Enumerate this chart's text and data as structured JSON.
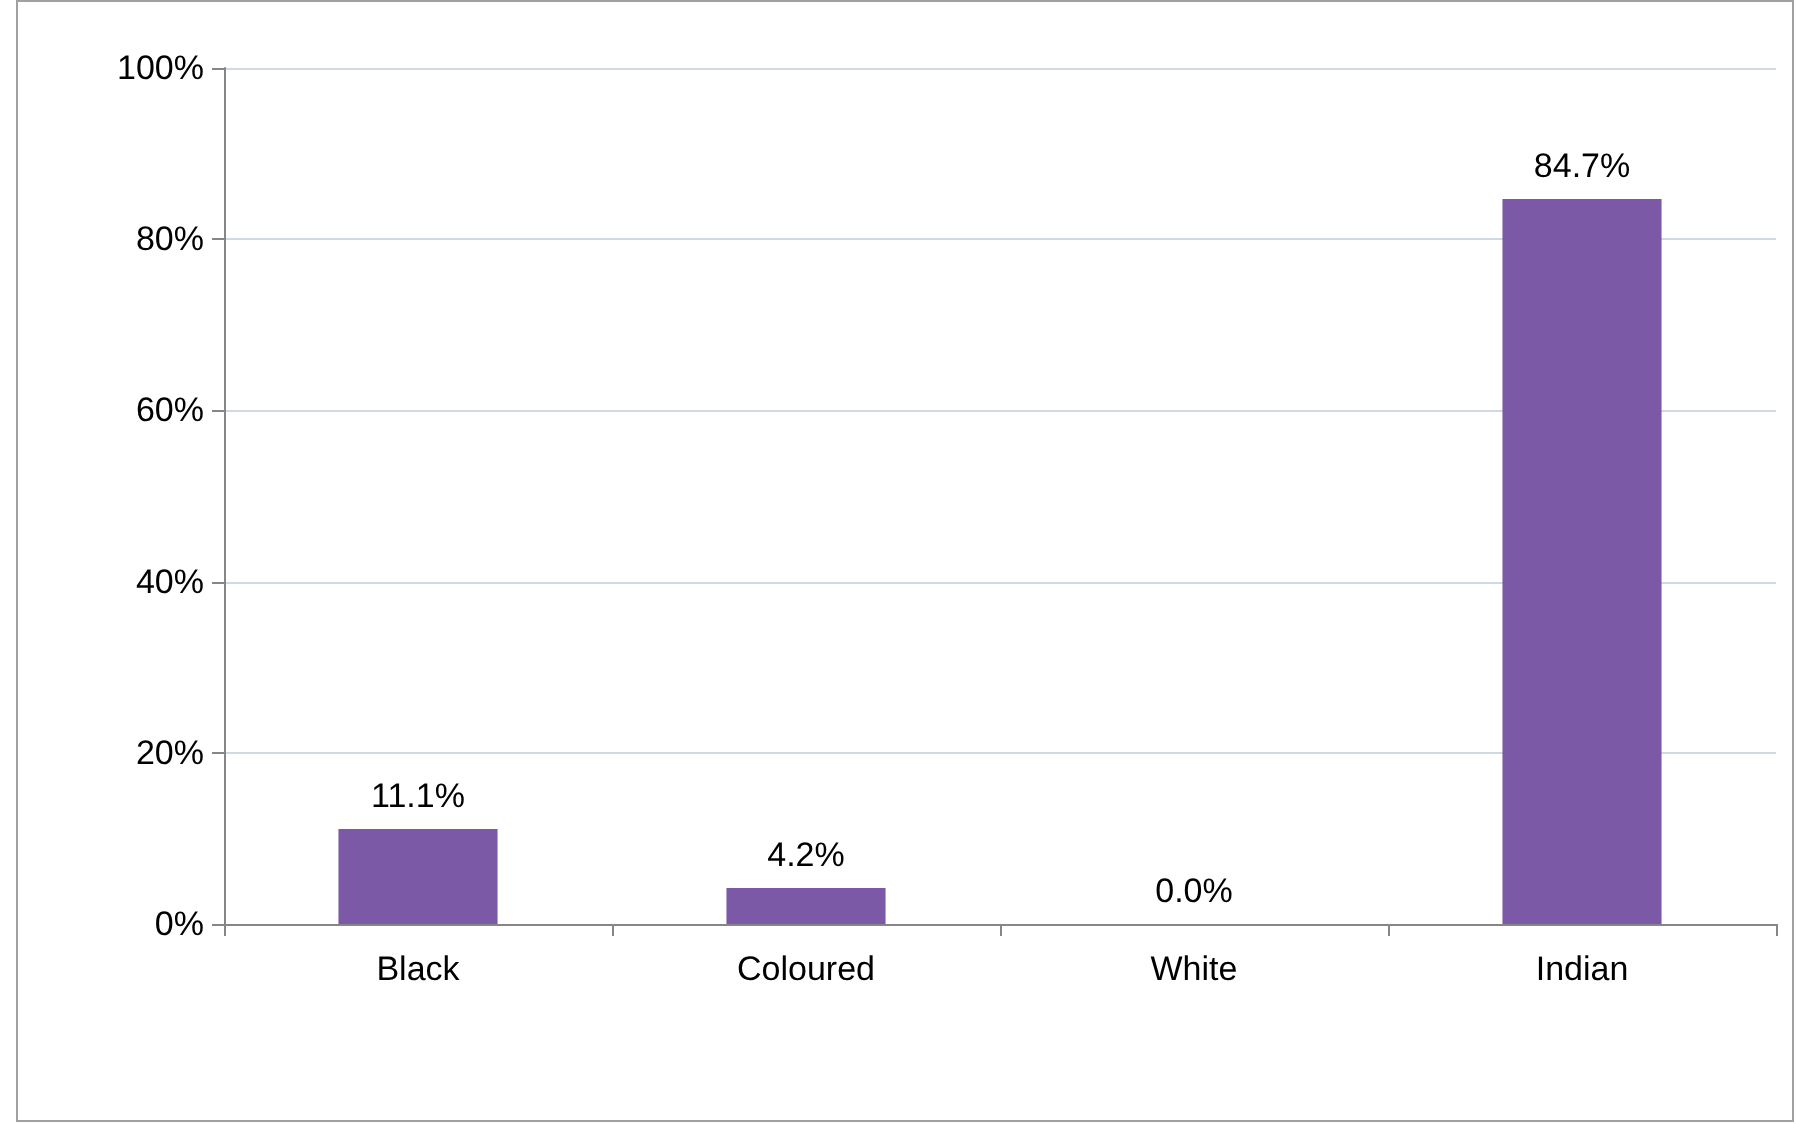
{
  "chart_data": {
    "type": "bar",
    "categories": [
      "Black",
      "Coloured",
      "White",
      "Indian"
    ],
    "values": [
      11.1,
      4.2,
      0.0,
      84.7
    ],
    "value_labels": [
      "11.1%",
      "4.2%",
      "0.0%",
      "84.7%"
    ],
    "color": "#7b59a6",
    "ylim": [
      0,
      100
    ],
    "yticks": [
      {
        "value": 0,
        "label": "0%"
      },
      {
        "value": 20,
        "label": "20%"
      },
      {
        "value": 40,
        "label": "40%"
      },
      {
        "value": 60,
        "label": "60%"
      },
      {
        "value": 80,
        "label": "80%"
      },
      {
        "value": 100,
        "label": "100%"
      }
    ],
    "grid": "y"
  }
}
